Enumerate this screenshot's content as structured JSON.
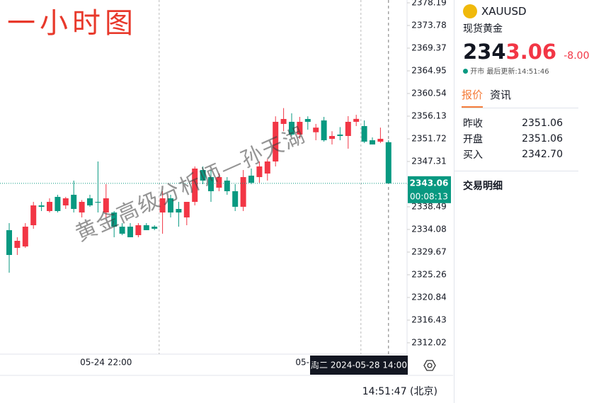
{
  "chart_data": {
    "type": "candlestick",
    "title": "一小时图",
    "watermark": "黄金高级分析师—孙天湖",
    "categories": [
      null,
      null,
      null,
      null,
      null,
      null,
      null,
      null,
      null,
      null,
      null,
      null,
      "05-24 22:00",
      null,
      null,
      null,
      null,
      null,
      null,
      null,
      null,
      null,
      null,
      null,
      null,
      null,
      null,
      null,
      null,
      null,
      null,
      null,
      null,
      null,
      null,
      null,
      null,
      "05-28",
      null,
      null,
      null,
      null,
      null,
      null,
      null,
      null,
      null,
      null
    ],
    "series": [
      {
        "up_color": "#f23645",
        "down_color": "#089981",
        "open": [
          2333.94,
          2330.49,
          2330.77,
          2334.9,
          2338.76,
          2337.66,
          2340.42,
          2338.76,
          2340.83,
          2337.38,
          2340.14,
          2339.45,
          2337.38,
          2337.38,
          2334.62,
          2334.62,
          2332.97,
          2334.9,
          2334.62,
          2337.38,
          2340.14,
          2338.07,
          2336.42,
          2339.45,
          2345.65,
          2344.27,
          2342.21,
          2343.59,
          2341.52,
          2338.49,
          2344.55,
          2344.27,
          2344.96,
          2347.31,
          2354.62,
          2355.03,
          2352.55,
          2355.58,
          2353.0,
          2355.3,
          2351.72,
          2352.55,
          2352.27,
          2355.03,
          2354.2,
          2351.44,
          2351.17,
          2351.06
        ],
        "high": [
          2335.31,
          2332.56,
          2335.31,
          2339.45,
          2339.45,
          2340.14,
          2340.83,
          2340.42,
          2343.59,
          2339.8,
          2340.83,
          2347.31,
          2342.9,
          2337.66,
          2335.31,
          2335.31,
          2335.31,
          2335.31,
          2334.9,
          2341.52,
          2340.83,
          2339.45,
          2339.45,
          2346.34,
          2346.34,
          2345.65,
          2345.0,
          2344.27,
          2342.9,
          2345.65,
          2345.93,
          2347.31,
          2347.8,
          2356.1,
          2357.7,
          2356.68,
          2355.99,
          2356.1,
          2354.62,
          2355.99,
          2353.2,
          2354.0,
          2356.13,
          2356.4,
          2355.3,
          2352.0,
          2353.9,
          2351.44
        ],
        "low": [
          2325.67,
          2329.11,
          2330.49,
          2334.21,
          2337.66,
          2337.38,
          2337.38,
          2338.07,
          2337.38,
          2336.42,
          2338.49,
          2337.38,
          2336.42,
          2332.56,
          2332.97,
          2332.56,
          2332.56,
          2333.94,
          2333.94,
          2333.25,
          2336.42,
          2334.62,
          2334.9,
          2338.76,
          2342.9,
          2339.45,
          2341.52,
          2340.83,
          2337.66,
          2337.66,
          2342.9,
          2343.17,
          2343.59,
          2346.34,
          2353.2,
          2352.27,
          2351.72,
          2353.5,
          2351.44,
          2351.17,
          2350.62,
          2351.44,
          2349.8,
          2354.2,
          2350.9,
          2350.62,
          2350.9,
          2343.06
        ],
        "close": [
          2329.11,
          2331.87,
          2334.62,
          2338.76,
          2338.49,
          2339.45,
          2337.66,
          2340.14,
          2338.07,
          2339.45,
          2338.76,
          2339.3,
          2340.14,
          2334.62,
          2333.25,
          2332.56,
          2334.9,
          2333.94,
          2334.21,
          2340.14,
          2337.38,
          2337.38,
          2339.45,
          2345.93,
          2343.59,
          2341.52,
          2344.27,
          2341.52,
          2338.49,
          2344.27,
          2343.17,
          2346.34,
          2347.31,
          2355.03,
          2355.58,
          2352.55,
          2355.03,
          2355.03,
          2353.9,
          2351.44,
          2352.27,
          2352.27,
          2355.03,
          2355.6,
          2351.17,
          2350.62,
          2351.72,
          2343.06
        ]
      }
    ],
    "ylim": [
      2309.81,
      2378.74
    ],
    "yticks": [
      2312.02,
      2316.43,
      2320.84,
      2325.26,
      2329.67,
      2334.08,
      2338.49,
      2342.9,
      2347.31,
      2351.72,
      2356.13,
      2360.54,
      2364.95,
      2369.37,
      2373.78,
      2378.19
    ],
    "last_price": 2343.06,
    "countdown": "00:08:13",
    "crosshair_label": "周二 2024-05-28  14:00",
    "clock": "14:51:47 (北京)"
  },
  "panel": {
    "symbol": "XAUUSD",
    "name": "现货黄金",
    "price_parts": [
      "234",
      "3.06"
    ],
    "change": "-8.00",
    "status": "开市",
    "updated": "最后更新:14:51:46",
    "tabs": [
      "报价",
      "资讯"
    ],
    "rows": [
      [
        "昨收",
        "2351.06"
      ],
      [
        "开盘",
        "2351.06"
      ],
      [
        "买入",
        "2342.70"
      ]
    ],
    "section": "交易明细"
  }
}
